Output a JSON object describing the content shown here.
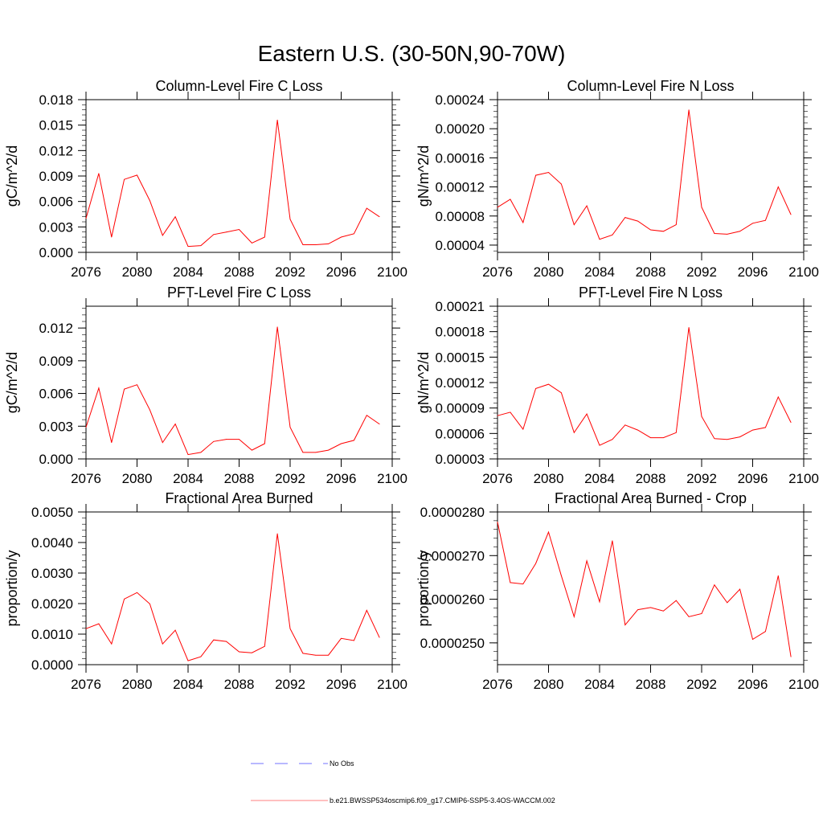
{
  "main_title": "Eastern U.S. (30-50N,90-70W)",
  "colors": {
    "model": "#ff0000",
    "obs": "#7070ff",
    "axis": "#000000"
  },
  "legend": {
    "placement": "bottom-center",
    "entries": [
      {
        "label": "No Obs",
        "style": "dashed",
        "color": "#7070ff"
      },
      {
        "label": "b.e21.BWSSP534oscmip6.f09_g17.CMIP6-SSP5-3.4OS-WACCM.002",
        "style": "solid",
        "color": "#ff0000"
      }
    ]
  },
  "chart_data": [
    {
      "type": "line",
      "title": "Column-Level Fire C Loss",
      "ylabel": "gC/m^2/d",
      "xlabel": "",
      "x": [
        2076,
        2077,
        2078,
        2079,
        2080,
        2081,
        2082,
        2083,
        2084,
        2085,
        2086,
        2087,
        2088,
        2089,
        2090,
        2091,
        2092,
        2093,
        2094,
        2095,
        2096,
        2097,
        2098,
        2099
      ],
      "xlim": [
        2076,
        2100
      ],
      "xticks": [
        2076,
        2080,
        2084,
        2088,
        2092,
        2096,
        2100
      ],
      "ylim": [
        0,
        0.018
      ],
      "yticks": [
        "0.000",
        "0.003",
        "0.006",
        "0.009",
        "0.012",
        "0.015",
        "0.018"
      ],
      "values": [
        0.004,
        0.0093,
        0.0018,
        0.0086,
        0.0091,
        0.0061,
        0.002,
        0.0042,
        0.0007,
        0.0008,
        0.0021,
        0.0024,
        0.0027,
        0.0011,
        0.0018,
        0.0156,
        0.0039,
        0.0009,
        0.0009,
        0.001,
        0.0018,
        0.0022,
        0.0052,
        0.0042
      ]
    },
    {
      "type": "line",
      "title": "Column-Level Fire N Loss",
      "ylabel": "gN/m^2/d",
      "xlabel": "",
      "x": [
        2076,
        2077,
        2078,
        2079,
        2080,
        2081,
        2082,
        2083,
        2084,
        2085,
        2086,
        2087,
        2088,
        2089,
        2090,
        2091,
        2092,
        2093,
        2094,
        2095,
        2096,
        2097,
        2098,
        2099
      ],
      "xlim": [
        2076,
        2100
      ],
      "xticks": [
        2076,
        2080,
        2084,
        2088,
        2092,
        2096,
        2100
      ],
      "ylim": [
        3e-05,
        0.00024
      ],
      "yticks": [
        "0.00004",
        "0.00008",
        "0.00012",
        "0.00016",
        "0.00020",
        "0.00024"
      ],
      "values": [
        9.2e-05,
        0.000103,
        7.1e-05,
        0.000136,
        0.00014,
        0.000124,
        6.8e-05,
        9.4e-05,
        4.8e-05,
        5.4e-05,
        7.8e-05,
        7.3e-05,
        6.1e-05,
        5.9e-05,
        6.8e-05,
        0.000226,
        9.2e-05,
        5.6e-05,
        5.5e-05,
        5.9e-05,
        7e-05,
        7.4e-05,
        0.00012,
        8.2e-05
      ]
    },
    {
      "type": "line",
      "title": "PFT-Level Fire C Loss",
      "ylabel": "gC/m^2/d",
      "xlabel": "",
      "x": [
        2076,
        2077,
        2078,
        2079,
        2080,
        2081,
        2082,
        2083,
        2084,
        2085,
        2086,
        2087,
        2088,
        2089,
        2090,
        2091,
        2092,
        2093,
        2094,
        2095,
        2096,
        2097,
        2098,
        2099
      ],
      "xlim": [
        2076,
        2100
      ],
      "xticks": [
        2076,
        2080,
        2084,
        2088,
        2092,
        2096,
        2100
      ],
      "ylim": [
        0,
        0.014
      ],
      "yticks": [
        "0.000",
        "0.003",
        "0.006",
        "0.009",
        "0.012"
      ],
      "values": [
        0.0029,
        0.0065,
        0.0015,
        0.0064,
        0.0068,
        0.0045,
        0.0015,
        0.0032,
        0.0004,
        0.0006,
        0.0016,
        0.0018,
        0.0018,
        0.0008,
        0.0014,
        0.0121,
        0.0029,
        0.0006,
        0.0006,
        0.0008,
        0.0014,
        0.0017,
        0.004,
        0.0032
      ]
    },
    {
      "type": "line",
      "title": "PFT-Level Fire N Loss",
      "ylabel": "gN/m^2/d",
      "xlabel": "",
      "x": [
        2076,
        2077,
        2078,
        2079,
        2080,
        2081,
        2082,
        2083,
        2084,
        2085,
        2086,
        2087,
        2088,
        2089,
        2090,
        2091,
        2092,
        2093,
        2094,
        2095,
        2096,
        2097,
        2098,
        2099
      ],
      "xlim": [
        2076,
        2100
      ],
      "xticks": [
        2076,
        2080,
        2084,
        2088,
        2092,
        2096,
        2100
      ],
      "ylim": [
        3e-05,
        0.00021
      ],
      "yticks": [
        "0.00003",
        "0.00006",
        "0.00009",
        "0.00012",
        "0.00015",
        "0.00018",
        "0.00021"
      ],
      "values": [
        8.1e-05,
        8.5e-05,
        6.5e-05,
        0.000113,
        0.000118,
        0.000108,
        6.1e-05,
        8.3e-05,
        4.6e-05,
        5.3e-05,
        7e-05,
        6.4e-05,
        5.5e-05,
        5.5e-05,
        6.1e-05,
        0.000185,
        8e-05,
        5.4e-05,
        5.3e-05,
        5.6e-05,
        6.4e-05,
        6.7e-05,
        0.000103,
        7.3e-05
      ]
    },
    {
      "type": "line",
      "title": "Fractional Area Burned",
      "ylabel": "proportion/y",
      "xlabel": "",
      "x": [
        2076,
        2077,
        2078,
        2079,
        2080,
        2081,
        2082,
        2083,
        2084,
        2085,
        2086,
        2087,
        2088,
        2089,
        2090,
        2091,
        2092,
        2093,
        2094,
        2095,
        2096,
        2097,
        2098,
        2099
      ],
      "xlim": [
        2076,
        2100
      ],
      "xticks": [
        2076,
        2080,
        2084,
        2088,
        2092,
        2096,
        2100
      ],
      "ylim": [
        0,
        0.005
      ],
      "yticks": [
        "0.0000",
        "0.0010",
        "0.0020",
        "0.0030",
        "0.0040",
        "0.0050"
      ],
      "values": [
        0.00118,
        0.00134,
        0.00068,
        0.00215,
        0.00236,
        0.00199,
        0.00068,
        0.00113,
        0.00013,
        0.00026,
        0.00081,
        0.00076,
        0.00042,
        0.00039,
        0.0006,
        0.00429,
        0.00118,
        0.00037,
        0.00031,
        0.00031,
        0.00086,
        0.00079,
        0.00178,
        0.00089
      ]
    },
    {
      "type": "line",
      "title": "Fractional Area Burned - Crop",
      "ylabel": "proportion/y",
      "xlabel": "",
      "x": [
        2076,
        2077,
        2078,
        2079,
        2080,
        2081,
        2082,
        2083,
        2084,
        2085,
        2086,
        2087,
        2088,
        2089,
        2090,
        2091,
        2092,
        2093,
        2094,
        2095,
        2096,
        2097,
        2098,
        2099
      ],
      "xlim": [
        2076,
        2100
      ],
      "xticks": [
        2076,
        2080,
        2084,
        2088,
        2092,
        2096,
        2100
      ],
      "ylim": [
        2.45e-05,
        2.8e-05
      ],
      "yticks": [
        "0.0000250",
        "0.0000260",
        "0.0000270",
        "0.0000280"
      ],
      "values": [
        2.777e-05,
        2.638e-05,
        2.635e-05,
        2.682e-05,
        2.754e-05,
        2.654e-05,
        2.56e-05,
        2.688e-05,
        2.594e-05,
        2.734e-05,
        2.541e-05,
        2.576e-05,
        2.581e-05,
        2.573e-05,
        2.597e-05,
        2.56e-05,
        2.567e-05,
        2.633e-05,
        2.592e-05,
        2.623e-05,
        2.508e-05,
        2.526e-05,
        2.654e-05,
        2.468e-05
      ]
    }
  ]
}
